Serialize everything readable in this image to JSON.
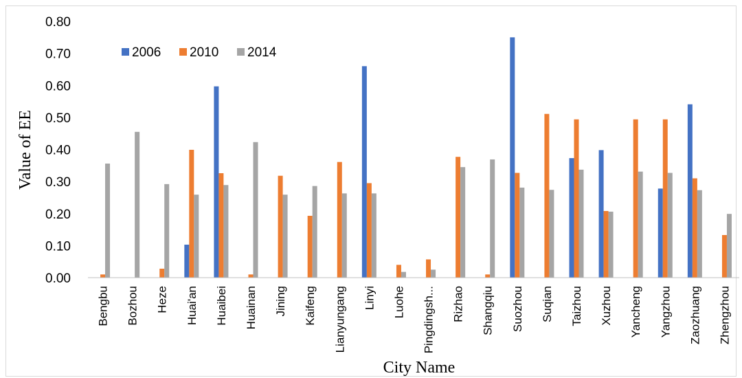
{
  "chart_data": {
    "type": "bar",
    "xlabel": "City Name",
    "ylabel": "Value of EE",
    "ylim": [
      0,
      0.8
    ],
    "yticks": [
      "0.00",
      "0.10",
      "0.20",
      "0.30",
      "0.40",
      "0.50",
      "0.60",
      "0.70",
      "0.80"
    ],
    "grid": false,
    "legend_position": "top-left",
    "categories": [
      "Bengbu",
      "Bozhou",
      "Heze",
      "Huai'an",
      "Huaibei",
      "Huainan",
      "Jining",
      "Kaifeng",
      "Lianyungang",
      "Linyi",
      "Luohe",
      "Pingdingsh...",
      "Rizhao",
      "Shangqiu",
      "Suozhou",
      "Suqian",
      "Taizhou",
      "Xuzhou",
      "Yancheng",
      "Yangzhou",
      "Zaozhuang",
      "Zhengzhou"
    ],
    "series": [
      {
        "name": "2006",
        "color": "#4472C4",
        "values": [
          0,
          0,
          0,
          0.103,
          0.597,
          0,
          0,
          0,
          0,
          0.66,
          0,
          0,
          0,
          0,
          0.75,
          0,
          0.373,
          0.398,
          0,
          0.278,
          0.541,
          0
        ]
      },
      {
        "name": "2010",
        "color": "#ED7D31",
        "values": [
          0.01,
          0,
          0.028,
          0.399,
          0.326,
          0.01,
          0.318,
          0.193,
          0.361,
          0.295,
          0.04,
          0.057,
          0.377,
          0.01,
          0.327,
          0.511,
          0.494,
          0.208,
          0.494,
          0.494,
          0.31,
          0.133
        ]
      },
      {
        "name": "2014",
        "color": "#A5A5A5",
        "values": [
          0.356,
          0.455,
          0.292,
          0.259,
          0.289,
          0.423,
          0.259,
          0.286,
          0.263,
          0.263,
          0.018,
          0.025,
          0.345,
          0.369,
          0.281,
          0.274,
          0.337,
          0.206,
          0.331,
          0.327,
          0.273,
          0.199
        ]
      }
    ]
  }
}
